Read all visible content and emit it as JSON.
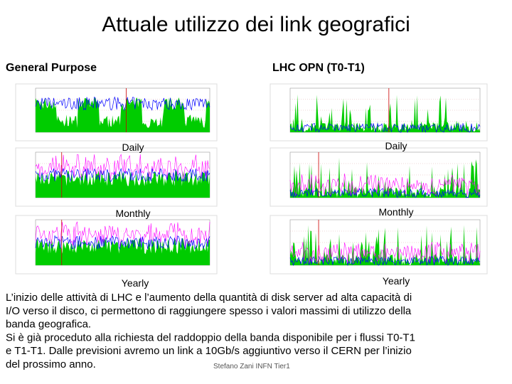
{
  "title": "Attuale utilizzo dei link geografici",
  "columns": [
    {
      "heading": "General Purpose",
      "captions": [
        "Daily",
        "Monthly",
        "Yearly"
      ]
    },
    {
      "heading": "LHC OPN (T0-T1)",
      "captions": [
        "Daily",
        "Monthly",
        "Yearly"
      ]
    }
  ],
  "paragraph": [
    "L’inizio delle attività di LHC e l’aumento della quantità  di disk server ad alta capacità di",
    "I/O verso il disco, ci permettono di raggiungere spesso i valori massimi di utilizzo della",
    "banda geografica.",
    "Si è già proceduto alla richiesta del raddoppio della banda disponibile per i flussi T0-T1",
    "e T1-T1. Dalle previsioni avremo un link a 10Gb/s aggiuntivo verso il CERN per l’inizio",
    "del prossimo anno."
  ],
  "footer": "Stefano Zani INFN Tier1"
}
